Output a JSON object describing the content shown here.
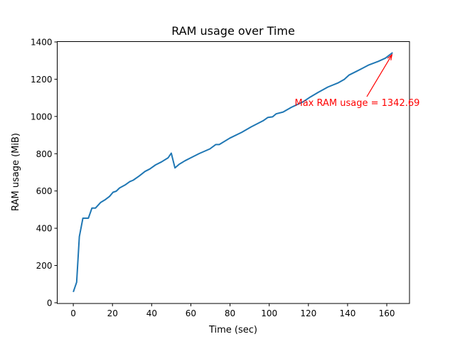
{
  "chart_data": {
    "type": "line",
    "title": "RAM usage over Time",
    "xlabel": "Time (sec)",
    "ylabel": "RAM usage (MiB)",
    "xlim": [
      -8.2,
      171.6
    ],
    "ylim": [
      -4,
      1402
    ],
    "xticks": [
      0,
      20,
      40,
      60,
      80,
      100,
      120,
      140,
      160
    ],
    "yticks": [
      0,
      200,
      400,
      600,
      800,
      1000,
      1200,
      1400
    ],
    "grid": false,
    "line_color": "#1f77b4",
    "series": [
      {
        "x": [
          0,
          1.7,
          3.1,
          4.9,
          7.7,
          9.5,
          11.3,
          14,
          16.1,
          18.5,
          20.3,
          21.9,
          23.6,
          26.4,
          28.8,
          30.6,
          33.6,
          36.6,
          39,
          42,
          45,
          48.4,
          50,
          51.9,
          54,
          57,
          60,
          64.3,
          69.7,
          72.7,
          74.5,
          79.9,
          86,
          90.8,
          96.9,
          99.3,
          101.7,
          103.5,
          107.1,
          111.3,
          117.3,
          120.9,
          125.1,
          129.9,
          135.3,
          138.3,
          140.7,
          144.3,
          147.3,
          150.9,
          155.7,
          159.3,
          163
        ],
        "y": [
          58,
          110,
          355,
          454,
          454,
          508,
          508,
          539,
          552,
          571,
          593,
          599,
          616,
          632,
          650,
          658,
          680,
          705,
          718,
          740,
          756,
          778,
          803,
          724,
          743,
          762,
          778,
          801,
          826,
          849,
          849,
          884,
          915,
          944,
          977,
          995,
          998,
          1014,
          1024,
          1049,
          1079,
          1104,
          1130,
          1158,
          1181,
          1199,
          1222,
          1241,
          1257,
          1277,
          1296,
          1313,
          1342.69
        ]
      }
    ],
    "annotation": {
      "text": "Max RAM usage = 1342.69",
      "point": [
        163,
        1342.69
      ],
      "text_position": [
        113,
        1050
      ],
      "color": "#ff0000"
    }
  }
}
